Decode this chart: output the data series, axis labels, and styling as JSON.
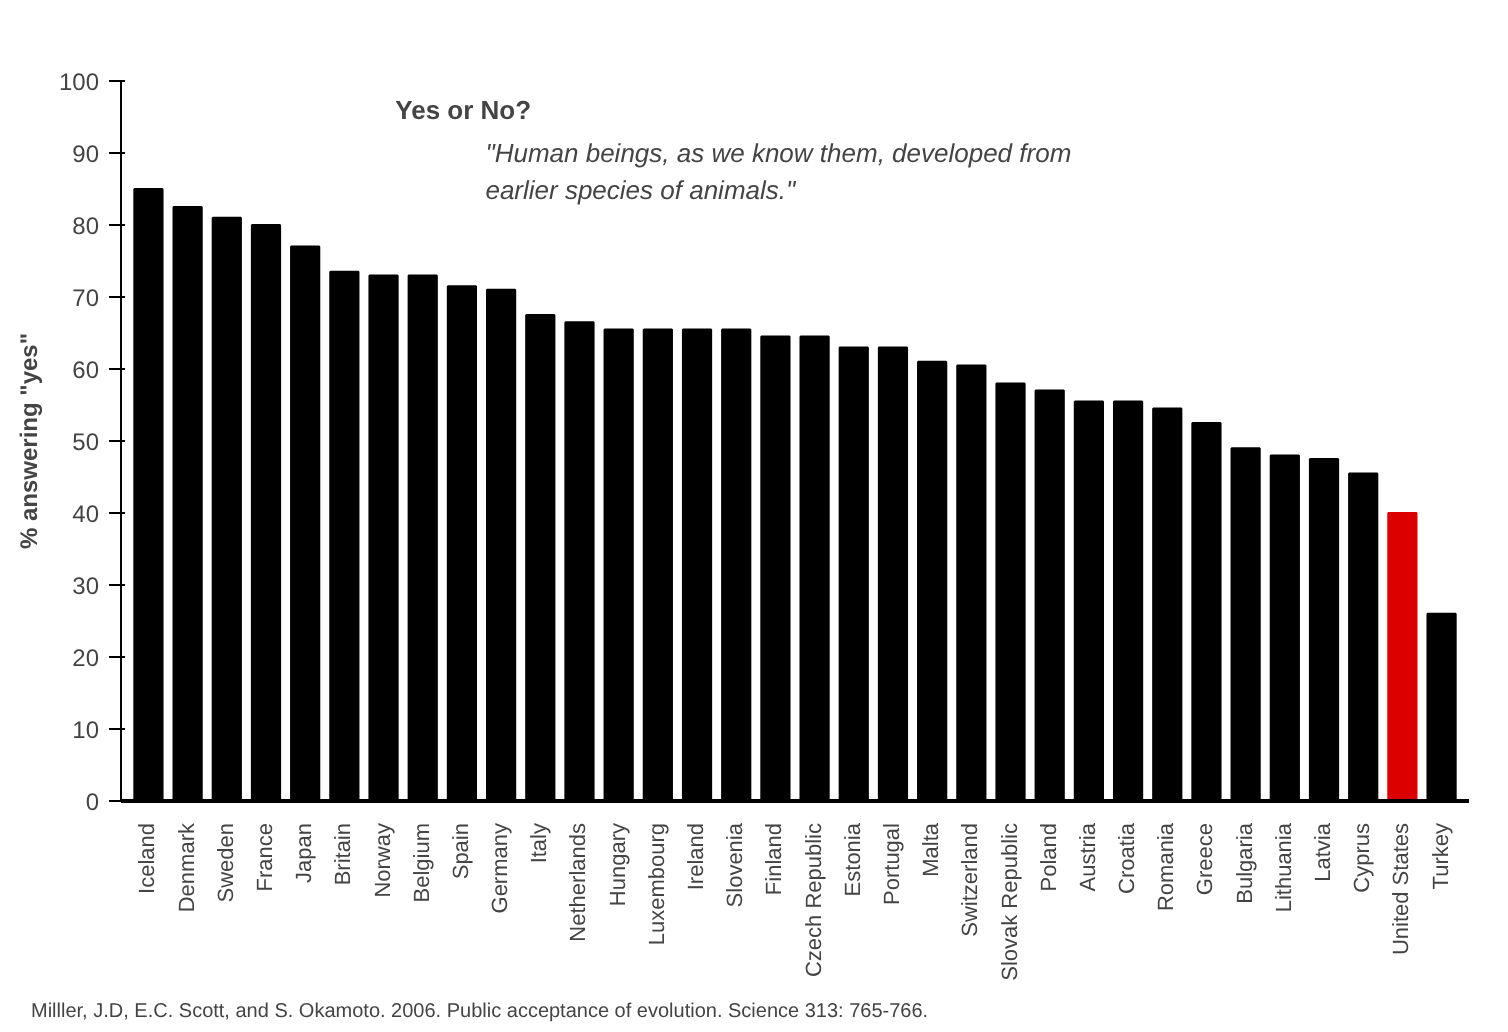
{
  "chart_data": {
    "type": "bar",
    "title": "Yes or No?",
    "subtitle": "\"Human beings, as we know them, developed from earlier species of animals.\"",
    "ylabel": "% answering \"yes\"",
    "categories": [
      "Iceland",
      "Denmark",
      "Sweden",
      "France",
      "Japan",
      "Britain",
      "Norway",
      "Belgium",
      "Spain",
      "Germany",
      "Italy",
      "Netherlands",
      "Hungary",
      "Luxembourg",
      "Ireland",
      "Slovenia",
      "Finland",
      "Czech Republic",
      "Estonia",
      "Portugal",
      "Malta",
      "Switzerland",
      "Slovak Republic",
      "Poland",
      "Austria",
      "Croatia",
      "Romania",
      "Greece",
      "Bulgaria",
      "Lithuania",
      "Latvia",
      "Cyprus",
      "United States",
      "Turkey"
    ],
    "values": [
      85,
      82.5,
      81,
      80,
      77,
      73.5,
      73,
      73,
      71.5,
      71,
      67.5,
      66.5,
      65.5,
      65.5,
      65.5,
      65.5,
      64.5,
      64.5,
      63,
      63,
      61,
      60.5,
      58,
      57,
      55.5,
      55.5,
      54.5,
      52.5,
      49,
      48,
      47.5,
      45.5,
      40,
      26
    ],
    "colors": [
      "#000000",
      "#000000",
      "#000000",
      "#000000",
      "#000000",
      "#000000",
      "#000000",
      "#000000",
      "#000000",
      "#000000",
      "#000000",
      "#000000",
      "#000000",
      "#000000",
      "#000000",
      "#000000",
      "#000000",
      "#000000",
      "#000000",
      "#000000",
      "#000000",
      "#000000",
      "#000000",
      "#000000",
      "#000000",
      "#000000",
      "#000000",
      "#000000",
      "#000000",
      "#000000",
      "#000000",
      "#000000",
      "#dd0000",
      "#000000"
    ],
    "ylim": [
      0,
      100
    ],
    "yticks": [
      0,
      10,
      20,
      30,
      40,
      50,
      60,
      70,
      80,
      90,
      100
    ],
    "grid": false,
    "annotations": [
      "Milller, J.D, E.C. Scott, and S. Okamoto.  2006.  Public acceptance of evolution.  Science  313: 765-766."
    ]
  }
}
